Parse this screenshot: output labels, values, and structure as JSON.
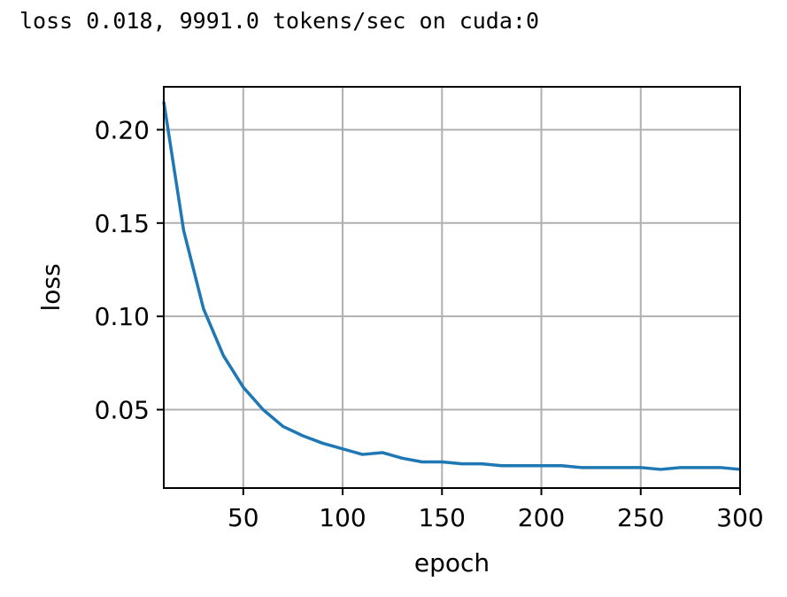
{
  "log_text": "loss 0.018, 9991.0 tokens/sec on cuda:0",
  "chart_data": {
    "type": "line",
    "title": "",
    "xlabel": "epoch",
    "ylabel": "loss",
    "xlim": [
      10,
      300
    ],
    "ylim": [
      0.008,
      0.223
    ],
    "grid": true,
    "x_ticks": [
      50,
      100,
      150,
      200,
      250,
      300
    ],
    "x_tick_labels": [
      "50",
      "100",
      "150",
      "200",
      "250",
      "300"
    ],
    "y_ticks": [
      0.05,
      0.1,
      0.15,
      0.2
    ],
    "y_tick_labels": [
      "0.05",
      "0.10",
      "0.15",
      "0.20"
    ],
    "colors": {
      "line": "#1f77b4",
      "grid": "#b0b0b0",
      "axes": "#000000"
    },
    "series": [
      {
        "x": [
          10,
          20,
          30,
          40,
          50,
          60,
          70,
          80,
          90,
          100,
          110,
          120,
          130,
          140,
          150,
          160,
          170,
          180,
          190,
          200,
          210,
          220,
          230,
          240,
          250,
          260,
          270,
          280,
          290,
          300
        ],
        "y": [
          0.215,
          0.146,
          0.104,
          0.079,
          0.062,
          0.05,
          0.041,
          0.036,
          0.032,
          0.029,
          0.026,
          0.027,
          0.024,
          0.022,
          0.022,
          0.021,
          0.021,
          0.02,
          0.02,
          0.02,
          0.02,
          0.019,
          0.019,
          0.019,
          0.019,
          0.018,
          0.019,
          0.019,
          0.019,
          0.018
        ]
      }
    ]
  }
}
